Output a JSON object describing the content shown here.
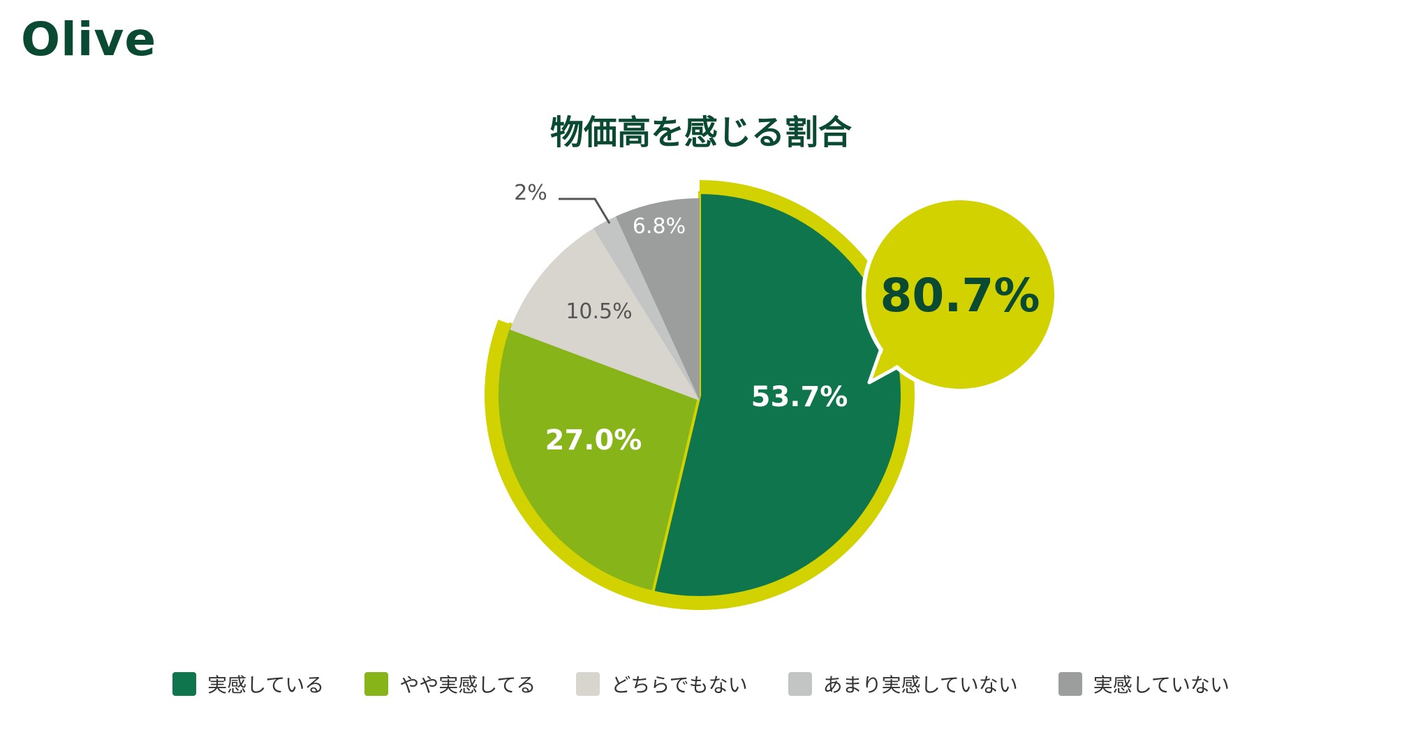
{
  "header": {
    "logo": "Olive"
  },
  "chart_data": {
    "type": "pie",
    "title": "物価高を感じる割合",
    "categories": [
      "実感している",
      "やや実感してる",
      "どちらでもない",
      "あまり実感していない",
      "実感していない"
    ],
    "values": [
      53.7,
      27.0,
      10.5,
      2,
      6.8
    ],
    "data_labels": [
      "53.7%",
      "27.0%",
      "10.5%",
      "2%",
      "6.8%"
    ],
    "colors": [
      "#0f754d",
      "#86b419",
      "#d8d5ce",
      "#c3c4c4",
      "#9c9d9d"
    ],
    "label_colors": [
      "#ffffff",
      "#ffffff",
      "#555555",
      "#555555",
      "#ffffff"
    ],
    "highlight": {
      "label": "80.7%",
      "categories": [
        "実感している",
        "やや実感してる"
      ],
      "color": "#d2d200"
    },
    "legend_position": "bottom"
  }
}
